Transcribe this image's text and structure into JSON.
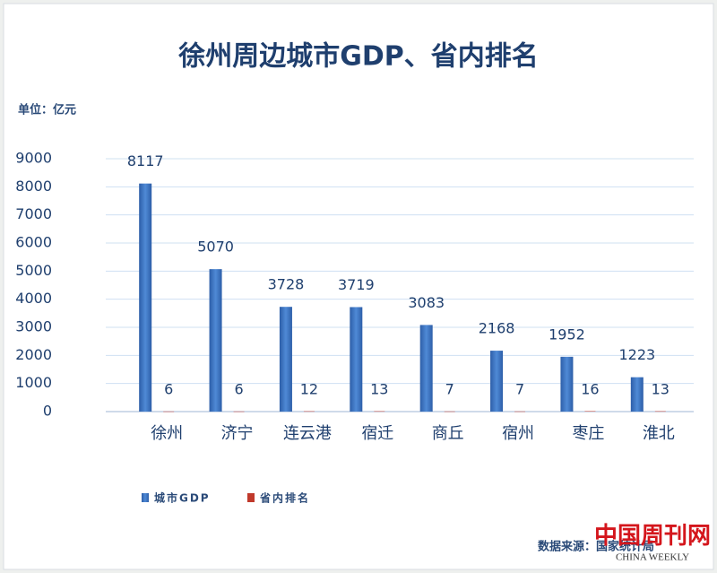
{
  "chart_data": {
    "type": "bar",
    "title": "徐州周边城市GDP、省内排名",
    "unit": "单位：亿元",
    "source": "数据来源：国家统计局",
    "watermark": "中国周刊网",
    "watermark_sub": "CHINA WEEKLY",
    "categories": [
      "徐州",
      "济宁",
      "连云港",
      "宿迁",
      "商丘",
      "宿州",
      "枣庄",
      "淮北"
    ],
    "series": [
      {
        "name": "城市GDP",
        "color": "#3a6fb8",
        "values": [
          8117,
          5070,
          3728,
          3719,
          3083,
          2168,
          1952,
          1223
        ]
      },
      {
        "name": "省内排名",
        "color": "#c0392b",
        "values": [
          6,
          6,
          12,
          13,
          7,
          7,
          16,
          13
        ]
      }
    ],
    "ylim": [
      0,
      9000
    ],
    "yticks": [
      0,
      1000,
      2000,
      3000,
      4000,
      5000,
      6000,
      7000,
      8000,
      9000
    ],
    "grid": true
  }
}
